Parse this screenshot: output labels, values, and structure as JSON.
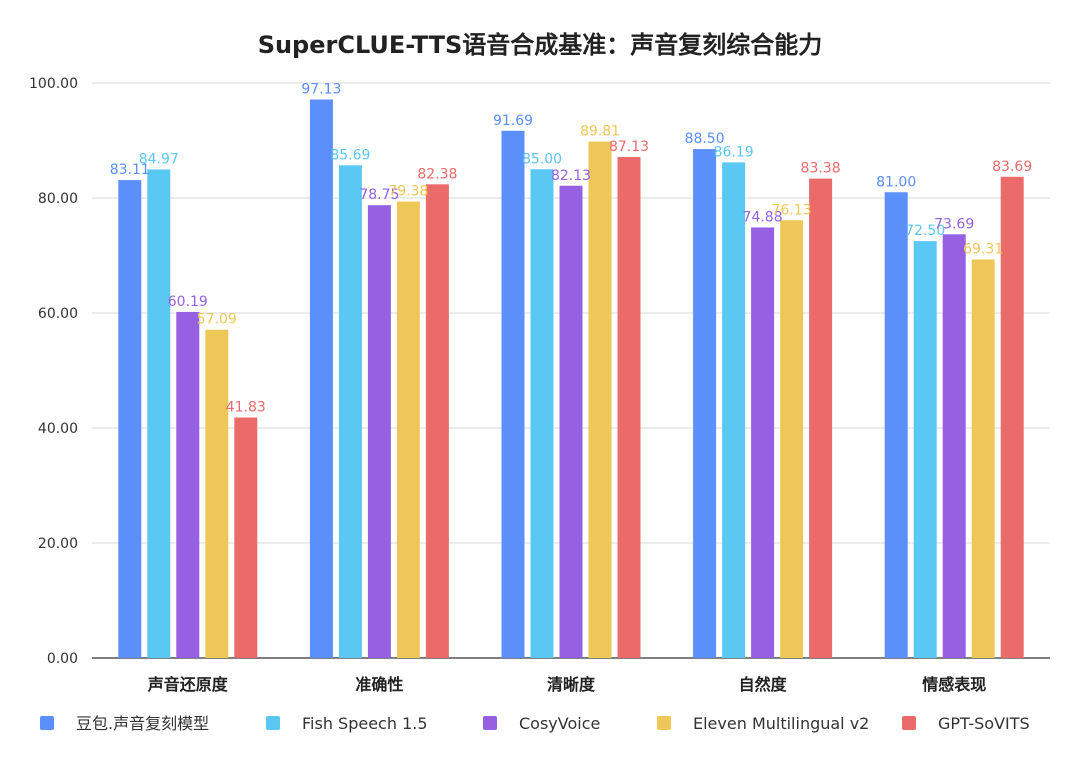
{
  "chart_data": {
    "type": "bar",
    "title": "SuperCLUE-TTS语音合成基准：声音复刻综合能力",
    "xlabel": "",
    "ylabel": "",
    "ylim": [
      0,
      100
    ],
    "yticks": [
      "0.00",
      "20.00",
      "40.00",
      "60.00",
      "80.00",
      "100.00"
    ],
    "grid": true,
    "legend_position": "bottom",
    "categories": [
      "声音还原度",
      "准确性",
      "清晰度",
      "自然度",
      "情感表现"
    ],
    "series": [
      {
        "name": "豆包.声音复刻模型",
        "color": "#5B8FF9",
        "values": [
          83.11,
          97.13,
          91.69,
          88.5,
          81.0
        ],
        "labels": [
          "83.11",
          "97.13",
          "91.69",
          "88.50",
          "81.00"
        ]
      },
      {
        "name": "Fish Speech 1.5",
        "color": "#5BC8F3",
        "values": [
          84.97,
          85.69,
          85.0,
          86.19,
          72.5
        ],
        "labels": [
          "84.97",
          "85.69",
          "85.00",
          "86.19",
          "72.50"
        ]
      },
      {
        "name": "CosyVoice",
        "color": "#9561E2",
        "values": [
          60.19,
          78.75,
          82.13,
          74.88,
          73.69
        ],
        "labels": [
          "60.19",
          "78.75",
          "82.13",
          "74.88",
          "73.69"
        ]
      },
      {
        "name": "Eleven Multilingual v2",
        "color": "#EEC759",
        "values": [
          57.09,
          79.38,
          89.81,
          76.13,
          69.31
        ],
        "labels": [
          "57.09",
          "79.38",
          "89.81",
          "76.13",
          "69.31"
        ]
      },
      {
        "name": "GPT-SoVITS",
        "color": "#EB6B6B",
        "values": [
          41.83,
          82.38,
          87.13,
          83.38,
          83.69
        ],
        "labels": [
          "41.83",
          "82.38",
          "87.13",
          "83.38",
          "83.69"
        ]
      }
    ]
  }
}
